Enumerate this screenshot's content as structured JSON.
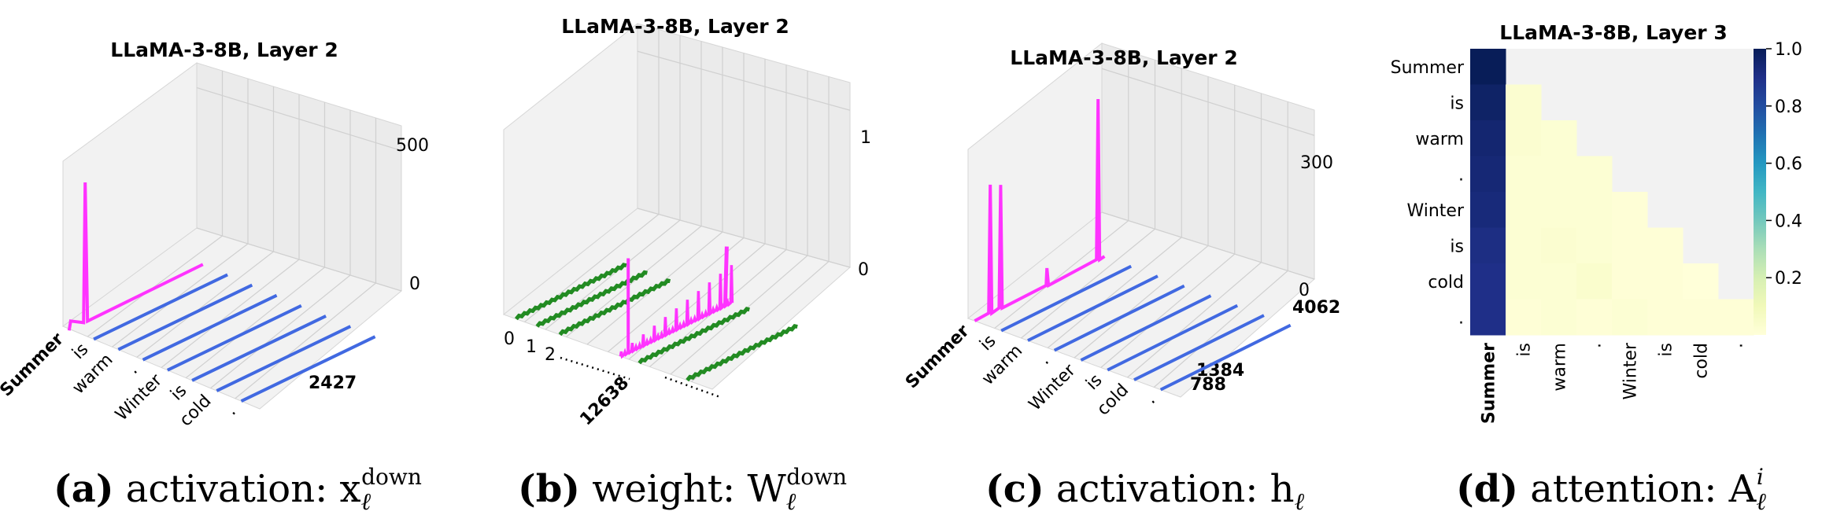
{
  "chart_data": [
    {
      "type": "3d-line",
      "title": "LLaMA-3-8B, Layer 2",
      "caption": {
        "label": "(a)",
        "text": "activation: x",
        "sub": "ℓ",
        "sup": "down"
      },
      "tokens": [
        "Summer",
        "is",
        "warm",
        ".",
        "Winter",
        "is",
        "cold",
        "."
      ],
      "highlight_token": "Summer",
      "channel_ticks": [
        "2427"
      ],
      "z_ticks": [
        "0",
        "500"
      ],
      "zlim": [
        0,
        500
      ],
      "series": [
        {
          "token": "Summer",
          "spike": 420,
          "channel": "2427"
        },
        {
          "token": "is",
          "spike": 0
        },
        {
          "token": "warm",
          "spike": 0
        },
        {
          "token": ".",
          "spike": 0
        },
        {
          "token": "Winter",
          "spike": 0
        },
        {
          "token": "is",
          "spike": 0
        },
        {
          "token": "cold",
          "spike": 0
        },
        {
          "token": ".",
          "spike": 0
        }
      ],
      "colors": {
        "highlight": "#ff33ff",
        "normal": "#4169e1"
      }
    },
    {
      "type": "3d-line",
      "title": "LLaMA-3-8B, Layer 2",
      "caption": {
        "label": "(b)",
        "text": "weight: W",
        "sub": "ℓ",
        "sup": "down"
      },
      "row_ticks": [
        "0",
        "1",
        "2",
        "12638"
      ],
      "z_ticks": [
        "0",
        "1"
      ],
      "zlim": [
        0,
        1
      ],
      "series": [
        {
          "row": "0",
          "peak": 0.05
        },
        {
          "row": "1",
          "peak": 0.05
        },
        {
          "row": "2",
          "peak": 0.05
        },
        {
          "row": "12638",
          "peak": 0.75,
          "highlight": true
        },
        {
          "row": "",
          "peak": 0.05
        },
        {
          "row": "",
          "peak": 0.05
        }
      ],
      "colors": {
        "highlight": "#ff33ff",
        "normal": "#228b22"
      }
    },
    {
      "type": "3d-line",
      "title": "LLaMA-3-8B, Layer 2",
      "caption": {
        "label": "(c)",
        "text": "activation: h",
        "sub": "ℓ",
        "sup": ""
      },
      "tokens": [
        "Summer",
        "is",
        "warm",
        ".",
        "Winter",
        "is",
        "cold",
        "."
      ],
      "highlight_token": "Summer",
      "channel_ticks": [
        "788",
        "1384",
        "4062"
      ],
      "z_ticks": [
        "0",
        "300"
      ],
      "zlim": [
        0,
        300
      ],
      "series": [
        {
          "token": "Summer",
          "spikes": [
            {
              "channel": "788",
              "value": 240
            },
            {
              "channel": "1384",
              "value": 230
            },
            {
              "channel": "4062",
              "value": 300
            }
          ]
        },
        {
          "token": "is",
          "spike": 0
        },
        {
          "token": "warm",
          "spike": 0
        },
        {
          "token": ".",
          "spike": 0
        },
        {
          "token": "Winter",
          "spike": 0
        },
        {
          "token": "is",
          "spike": 0
        },
        {
          "token": "cold",
          "spike": 0
        },
        {
          "token": ".",
          "spike": 0
        }
      ],
      "colors": {
        "highlight": "#ff33ff",
        "normal": "#4169e1"
      }
    },
    {
      "type": "heatmap",
      "title": "LLaMA-3-8B, Layer 3",
      "caption": {
        "label": "(d)",
        "text": "attention: A",
        "sub": "ℓ",
        "sup": "i"
      },
      "rows": [
        "Summer",
        "is",
        "warm",
        ".",
        "Winter",
        "is",
        "cold",
        "."
      ],
      "cols": [
        "Summer",
        "is",
        "warm",
        ".",
        "Winter",
        "is",
        "cold",
        "."
      ],
      "highlight_col": "Summer",
      "values": [
        [
          1.0,
          null,
          null,
          null,
          null,
          null,
          null,
          null
        ],
        [
          0.97,
          0.03,
          null,
          null,
          null,
          null,
          null,
          null
        ],
        [
          0.95,
          0.03,
          0.02,
          null,
          null,
          null,
          null,
          null
        ],
        [
          0.94,
          0.02,
          0.02,
          0.02,
          null,
          null,
          null,
          null
        ],
        [
          0.93,
          0.02,
          0.02,
          0.02,
          0.01,
          null,
          null,
          null
        ],
        [
          0.91,
          0.02,
          0.03,
          0.02,
          0.01,
          0.01,
          null,
          null
        ],
        [
          0.9,
          0.02,
          0.02,
          0.04,
          0.01,
          0.01,
          0.0,
          null
        ],
        [
          0.9,
          0.01,
          0.02,
          0.01,
          0.02,
          0.01,
          0.01,
          0.01
        ]
      ],
      "colorbar_ticks": [
        "0.2",
        "0.4",
        "0.6",
        "0.8",
        "1.0"
      ],
      "vlim": [
        0,
        1
      ],
      "colormap": "YlGnBu"
    }
  ]
}
